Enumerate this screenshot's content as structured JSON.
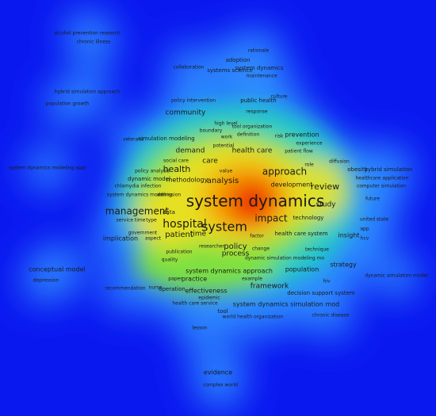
{
  "terms": [
    "alcohol prevention research",
    "chronic illness",
    "rationale",
    "adoption",
    "collaboration",
    "system dynamics",
    "systems science",
    "maintenance",
    "hybrid simulation approach",
    "population growth",
    "policy intervention",
    "public health",
    "culture",
    "response",
    "community",
    "high level",
    "tool organization",
    "boundary",
    "definition",
    "risk",
    "prevention",
    "veterans",
    "simulation modeling",
    "work",
    "potential",
    "experience",
    "patient flow",
    "demand",
    "health care",
    "social care",
    "care",
    "diffusion",
    "system dynamics modeling appr",
    "health",
    "role",
    "obesity",
    "hybrid simulation",
    "approach",
    "policy analysis",
    "value",
    "healthcare application",
    "dynamic model",
    "methodology",
    "analysis",
    "development",
    "review",
    "computer simulation",
    "chlamydia infection",
    "system dynamics modeling",
    "admission",
    "future",
    "system dynamics",
    "study",
    "management",
    "data",
    "united state",
    "hospital",
    "service time",
    "type",
    "impact",
    "technology",
    "system",
    "app",
    "patient",
    "time",
    "government",
    "factor",
    "health care system",
    "insight",
    "hcv",
    "implication",
    "aspect",
    "policy",
    "researcher",
    "change",
    "technique",
    "publication",
    "process",
    "quality",
    "dynamic simulation modeling mo",
    "strategy",
    "conceptual model",
    "system dynamics approach",
    "population",
    "dynamic simulation model",
    "depression",
    "paper",
    "practice",
    "example",
    "hiv",
    "framework",
    "recommendation",
    "nurse",
    "operation",
    "effectiveness",
    "decision support system",
    "epidemic",
    "health care service",
    "system dynamics simulation mod",
    "tool",
    "world health organization",
    "chronic disease",
    "lesson",
    "evidence",
    "complex world"
  ]
}
